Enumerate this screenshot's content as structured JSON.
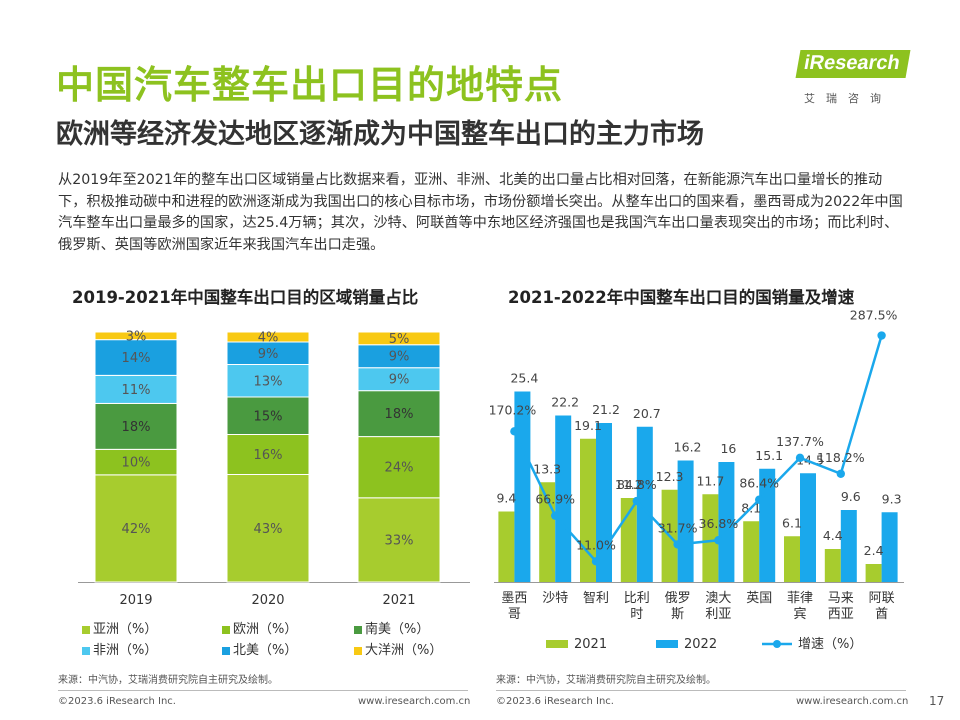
{
  "header": {
    "title": "中国汽车整车出口目的地特点",
    "subtitle": "欧洲等经济发达地区逐渐成为中国整车出口的主力市场",
    "intro": "从2019年至2021年的整车出口区域销量占比数据来看，亚洲、非洲、北美的出口量占比相对回落，在新能源汽车出口量增长的推动下，积极推动碳中和进程的欧洲逐渐成为我国出口的核心目标市场，市场份额增长突出。从整车出口的国来看，墨西哥成为2022年中国汽车整车出口量最多的国家，达25.4万辆；其次，沙特、阿联酋等中东地区经济强国也是我国汽车出口量表现突出的市场；而比利时、俄罗斯、英国等欧洲国家近年来我国汽车出口走强。"
  },
  "logo": {
    "en": "iResearch",
    "cn": "艾瑞咨询"
  },
  "colors": {
    "asia": "#a7cc2e",
    "europe": "#8dc21f",
    "south_america": "#4a9a40",
    "africa": "#4dc8ef",
    "north_america": "#1aa0e0",
    "oceania": "#f8c913",
    "bar2021": "#a7cc2e",
    "bar2022": "#1aa8ec",
    "growth_line": "#1aa8ec"
  },
  "chart_data": [
    {
      "type": "bar",
      "stacked": true,
      "title": "2019-2021年中国整车出口目的区域销量占比",
      "categories": [
        "2019",
        "2020",
        "2021"
      ],
      "series": [
        {
          "name": "亚洲（%）",
          "values": [
            42,
            43,
            33
          ],
          "labels": [
            "42%",
            "43%",
            "33%"
          ]
        },
        {
          "name": "欧洲（%）",
          "values": [
            10,
            16,
            24
          ],
          "labels": [
            "10%",
            "16%",
            "24%"
          ]
        },
        {
          "name": "南美（%）",
          "values": [
            18,
            15,
            18
          ],
          "labels": [
            "18%",
            "15%",
            "18%"
          ]
        },
        {
          "name": "非洲（%）",
          "values": [
            11,
            13,
            9
          ],
          "labels": [
            "11%",
            "13%",
            "9%"
          ]
        },
        {
          "name": "北美（%）",
          "values": [
            14,
            9,
            9
          ],
          "labels": [
            "14%",
            "9%",
            "9%"
          ]
        },
        {
          "name": "大洋洲（%）",
          "values": [
            3,
            4,
            5
          ],
          "labels": [
            "3%",
            "4%",
            "5%"
          ]
        }
      ],
      "legend_position": "bottom"
    },
    {
      "type": "bar",
      "title": "2021-2022年中国整车出口目的国销量及增速",
      "categories": [
        "墨西哥",
        "沙特",
        "智利",
        "比利时",
        "俄罗斯",
        "澳大利亚",
        "英国",
        "菲律宾",
        "马来西亚",
        "阿联酋"
      ],
      "category_lines": [
        [
          "墨西",
          "哥"
        ],
        [
          "沙特"
        ],
        [
          "智利"
        ],
        [
          "比利",
          "时"
        ],
        [
          "俄罗",
          "斯"
        ],
        [
          "澳大",
          "利亚"
        ],
        [
          "英国"
        ],
        [
          "菲律",
          "宾"
        ],
        [
          "马来",
          "西亚"
        ],
        [
          "阿联",
          "酋"
        ]
      ],
      "series": [
        {
          "name": "2021",
          "values": [
            9.4,
            13.3,
            19.1,
            11.2,
            12.3,
            11.7,
            8.1,
            6.1,
            4.4,
            2.4
          ],
          "labels": [
            "9.4",
            "13.3",
            "19.1",
            "11.2",
            "12.3",
            "11.7",
            "8.1",
            "6.1",
            "4.4",
            "2.4"
          ]
        },
        {
          "name": "2022",
          "values": [
            25.4,
            22.2,
            21.2,
            20.7,
            16.2,
            16,
            15.1,
            14.5,
            9.6,
            9.3
          ],
          "labels": [
            "25.4",
            "22.2",
            "21.2",
            "20.7",
            "16.2",
            "16",
            "15.1",
            "14.5",
            "9.6",
            "9.3"
          ]
        },
        {
          "name": "增速（%）",
          "type": "line",
          "values": [
            170.2,
            66.9,
            11.0,
            84.8,
            31.7,
            36.8,
            86.4,
            137.7,
            118.2,
            287.5
          ],
          "labels": [
            "170.2%",
            "66.9%",
            "11.0%",
            "84.8%",
            "31.7%",
            "36.8%",
            "86.4%",
            "137.7%",
            "118.2%",
            "287.5%"
          ]
        }
      ],
      "legend_position": "bottom"
    }
  ],
  "sources": {
    "left": "来源：中汽协，艾瑞消费研究院自主研究及绘制。",
    "right": "来源：中汽协，艾瑞消费研究院自主研究及绘制。"
  },
  "footer": {
    "left_copyright": "©2023.6 iResearch Inc.",
    "left_url": "www.iresearch.com.cn",
    "right_copyright": "©2023.6 iResearch Inc.",
    "right_url": "www.iresearch.com.cn",
    "page": "17"
  }
}
